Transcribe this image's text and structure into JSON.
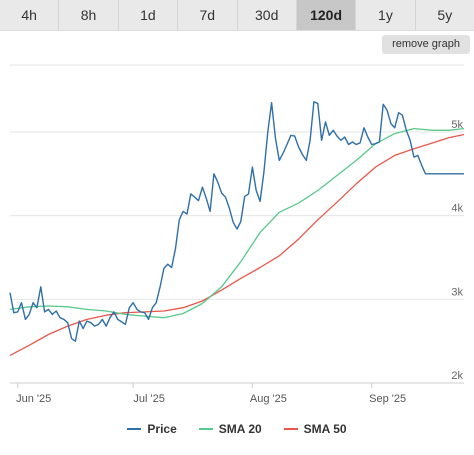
{
  "tabs": [
    {
      "label": "4h",
      "active": false
    },
    {
      "label": "8h",
      "active": false
    },
    {
      "label": "1d",
      "active": false
    },
    {
      "label": "7d",
      "active": false
    },
    {
      "label": "30d",
      "active": false
    },
    {
      "label": "120d",
      "active": true
    },
    {
      "label": "1y",
      "active": false
    },
    {
      "label": "5y",
      "active": false
    }
  ],
  "toolbar": {
    "remove_graph_label": "remove graph"
  },
  "colors": {
    "price": "#2f6fa8",
    "sma20": "#57c98a",
    "sma50": "#e8574a",
    "grid": "#e6e6e6"
  },
  "chart_data": {
    "type": "line",
    "x_ticks": [
      {
        "label": "Jun '25",
        "day": 0
      },
      {
        "label": "Jul '25",
        "day": 30
      },
      {
        "label": "Aug '25",
        "day": 61
      },
      {
        "label": "Sep '25",
        "day": 92
      }
    ],
    "y_ticks": [
      {
        "label": "2k",
        "value": 2000
      },
      {
        "label": "3k",
        "value": 3000
      },
      {
        "label": "4k",
        "value": 4000
      },
      {
        "label": "5k",
        "value": 5000
      }
    ],
    "ylim": [
      2000,
      5800
    ],
    "xlim": [
      -2,
      116
    ],
    "grid": true,
    "legend": "bottom",
    "series": [
      {
        "name": "Price",
        "x": [
          -2,
          -1,
          0,
          1,
          2,
          3,
          4,
          5,
          6,
          7,
          8,
          9,
          10,
          11,
          12,
          13,
          14,
          15,
          16,
          17,
          18,
          19,
          20,
          21,
          22,
          23,
          24,
          25,
          26,
          27,
          28,
          29,
          30,
          31,
          32,
          33,
          34,
          35,
          36,
          37,
          38,
          39,
          40,
          41,
          42,
          43,
          44,
          45,
          46,
          47,
          48,
          49,
          50,
          51,
          52,
          53,
          54,
          55,
          56,
          57,
          58,
          59,
          60,
          61,
          62,
          63,
          64,
          65,
          66,
          67,
          68,
          69,
          70,
          71,
          72,
          73,
          74,
          75,
          76,
          77,
          78,
          79,
          80,
          81,
          82,
          83,
          84,
          85,
          86,
          87,
          88,
          89,
          90,
          91,
          92,
          93,
          94,
          95,
          96,
          97,
          98,
          99,
          100,
          101,
          102,
          103,
          104,
          105,
          106,
          107,
          108,
          109,
          110,
          111,
          112,
          113,
          114,
          115,
          116
        ],
        "values": [
          3080,
          2840,
          2850,
          2960,
          2760,
          2820,
          2960,
          2900,
          3150,
          2850,
          2880,
          2820,
          2860,
          2780,
          2760,
          2720,
          2530,
          2500,
          2740,
          2650,
          2740,
          2720,
          2680,
          2700,
          2760,
          2680,
          2780,
          2850,
          2760,
          2730,
          2700,
          2900,
          2960,
          2880,
          2850,
          2840,
          2760,
          2900,
          2960,
          3150,
          3370,
          3420,
          3380,
          3600,
          3950,
          4050,
          4020,
          4260,
          4220,
          4180,
          4340,
          4210,
          4050,
          4500,
          4400,
          4270,
          4220,
          4090,
          3920,
          3840,
          3930,
          4230,
          4260,
          4580,
          4300,
          4170,
          4520,
          5000,
          5350,
          4920,
          4660,
          4750,
          4850,
          4960,
          4950,
          4820,
          4730,
          4660,
          4900,
          5360,
          5340,
          4900,
          5120,
          4960,
          5020,
          4950,
          4900,
          4940,
          4850,
          4880,
          4850,
          4870,
          5050,
          4940,
          4850,
          4860,
          4880,
          5330,
          5260,
          5100,
          5050,
          5230,
          5200,
          5020,
          4900,
          4700,
          4720,
          4600,
          4500,
          4500,
          4500,
          4500,
          4500,
          4500,
          4500,
          4500,
          4500,
          4500,
          4500
        ],
        "color_key": "price"
      },
      {
        "name": "SMA 20",
        "x": [
          -2,
          3,
          8,
          13,
          18,
          23,
          28,
          33,
          38,
          43,
          48,
          53,
          58,
          63,
          68,
          73,
          78,
          83,
          88,
          93,
          98,
          103,
          108,
          112,
          116
        ],
        "values": [
          2880,
          2910,
          2920,
          2910,
          2880,
          2860,
          2820,
          2800,
          2780,
          2830,
          2950,
          3150,
          3450,
          3800,
          4040,
          4150,
          4300,
          4480,
          4660,
          4860,
          4980,
          5040,
          5020,
          5020,
          5040
        ],
        "color_key": "sma20"
      },
      {
        "name": "SMA 50",
        "x": [
          -2,
          3,
          8,
          13,
          18,
          23,
          28,
          33,
          38,
          43,
          48,
          53,
          58,
          63,
          68,
          73,
          78,
          83,
          88,
          93,
          98,
          103,
          108,
          112,
          116
        ],
        "values": [
          2330,
          2450,
          2580,
          2680,
          2760,
          2810,
          2840,
          2850,
          2860,
          2900,
          2980,
          3110,
          3250,
          3380,
          3520,
          3720,
          3950,
          4160,
          4380,
          4580,
          4720,
          4800,
          4870,
          4930,
          4970
        ],
        "color_key": "sma50"
      }
    ]
  }
}
